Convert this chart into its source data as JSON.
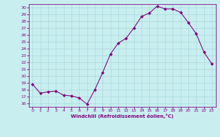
{
  "x": [
    0,
    1,
    2,
    3,
    4,
    5,
    6,
    7,
    8,
    9,
    10,
    11,
    12,
    13,
    14,
    15,
    16,
    17,
    18,
    19,
    20,
    21,
    22,
    23
  ],
  "y": [
    18.8,
    17.5,
    17.7,
    17.8,
    17.2,
    17.1,
    16.8,
    15.9,
    18.0,
    20.5,
    23.2,
    24.8,
    25.5,
    27.0,
    28.7,
    29.2,
    30.2,
    29.8,
    29.8,
    29.3,
    27.8,
    26.2,
    23.5,
    21.8
  ],
  "line_color": "#800080",
  "marker": "D",
  "marker_size": 2.0,
  "bg_color": "#c8eef0",
  "grid_color": "#b0dfe0",
  "xlabel": "Windchill (Refroidissement éolien,°C)",
  "ylabel_ticks": [
    16,
    17,
    18,
    19,
    20,
    21,
    22,
    23,
    24,
    25,
    26,
    27,
    28,
    29,
    30
  ],
  "xlim": [
    -0.5,
    23.5
  ],
  "ylim": [
    15.5,
    30.5
  ],
  "tick_color": "#800080",
  "label_color": "#800080",
  "spine_color": "#800080"
}
